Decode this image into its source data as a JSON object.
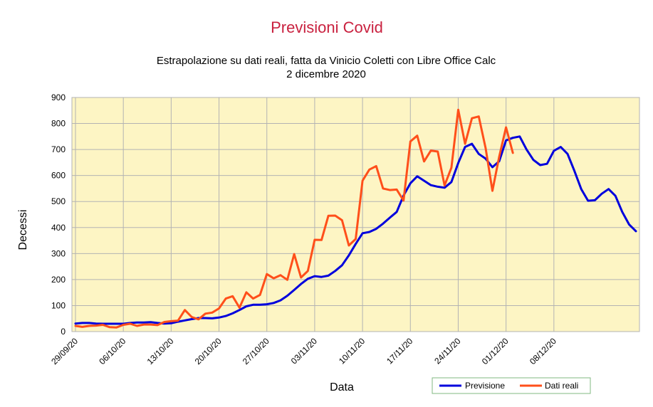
{
  "colors": {
    "plot_background": "#fdf5c4",
    "grid": "#b3b3b3",
    "title": "#c9213f",
    "previsione": "#0000dd",
    "dati_reali": "#ff4f1a",
    "legend_border": "#80b880"
  },
  "chart_data": {
    "type": "line",
    "title": "Previsioni Covid",
    "subtitle_lines": [
      "Estrapolazione su dati reali, fatta da Vinicio Coletti con Libre Office Calc",
      "2 dicembre 2020"
    ],
    "xlabel": "Data",
    "ylabel": "Decessi",
    "ylim": [
      0,
      900
    ],
    "yticks": [
      0,
      100,
      200,
      300,
      400,
      500,
      600,
      700,
      800,
      900
    ],
    "x_start_date": "2020-09-29",
    "x_end_date": "2020-12-20",
    "xticks": [
      "29/09/20",
      "06/10/20",
      "13/10/20",
      "20/10/20",
      "27/10/20",
      "03/11/20",
      "10/11/20",
      "17/11/20",
      "24/11/20",
      "01/12/20",
      "08/12/20"
    ],
    "grid": true,
    "legend_position": "bottom-right",
    "series": [
      {
        "name": "Previsione",
        "color": "#0000dd",
        "values": [
          31,
          33,
          33,
          31,
          30,
          30,
          30,
          30,
          33,
          35,
          35,
          36,
          33,
          31,
          32,
          38,
          43,
          48,
          52,
          52,
          51,
          54,
          60,
          70,
          83,
          97,
          103,
          103,
          105,
          110,
          120,
          138,
          160,
          183,
          203,
          213,
          210,
          215,
          233,
          255,
          293,
          337,
          378,
          383,
          395,
          415,
          438,
          460,
          523,
          570,
          597,
          580,
          563,
          557,
          553,
          575,
          648,
          710,
          722,
          683,
          665,
          632,
          655,
          735,
          745,
          750,
          700,
          660,
          640,
          645,
          695,
          710,
          683,
          618,
          548,
          503,
          505,
          530,
          548,
          522,
          460,
          412,
          386
        ]
      },
      {
        "name": "Dati reali",
        "color": "#ff4f1a",
        "values": [
          22,
          18,
          22,
          23,
          26,
          17,
          16,
          26,
          30,
          22,
          27,
          27,
          25,
          37,
          40,
          42,
          83,
          56,
          47,
          69,
          73,
          89,
          127,
          136,
          92,
          151,
          127,
          141,
          221,
          205,
          217,
          199,
          298,
          208,
          233,
          353,
          352,
          445,
          446,
          428,
          331,
          356,
          580,
          623,
          636,
          550,
          544,
          546,
          504,
          731,
          753,
          654,
          696,
          692,
          562,
          630,
          853,
          722,
          820,
          827,
          706,
          541,
          672,
          785,
          687
        ]
      }
    ]
  }
}
